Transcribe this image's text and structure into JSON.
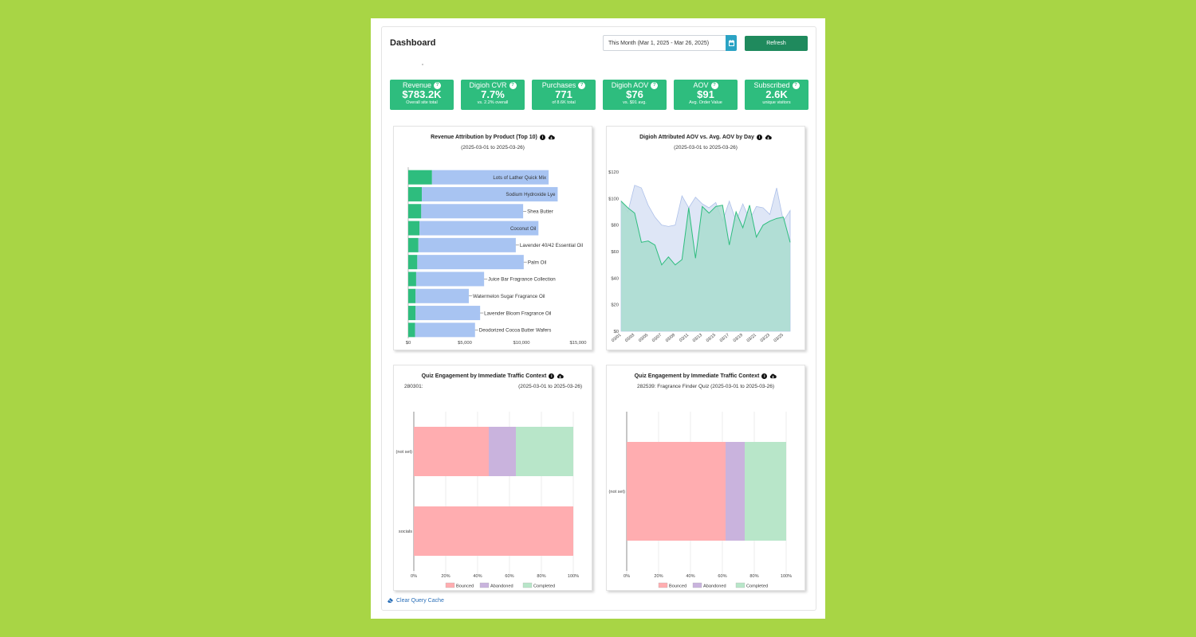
{
  "header": {
    "title": "Dashboard",
    "date_range": "This Month (Mar 1, 2025 - Mar 26, 2025)",
    "refresh_label": "Refresh"
  },
  "kpis": [
    {
      "label": "Revenue",
      "value": "$783.2K",
      "sub": "Overall site total"
    },
    {
      "label": "Digioh CVR",
      "value": "7.7%",
      "sub": "vs. 2.2% overall"
    },
    {
      "label": "Purchases",
      "value": "771",
      "sub": "of 8.6K total"
    },
    {
      "label": "Digioh AOV",
      "value": "$76",
      "sub": "vs. $91 avg."
    },
    {
      "label": "AOV",
      "value": "$91",
      "sub": "Avg. Order Value"
    },
    {
      "label": "Subscribed",
      "value": "2.6K",
      "sub": "unique visitors"
    }
  ],
  "charts": {
    "revenue": {
      "title": "Revenue Attribution by Product (Top 10)",
      "subtitle": "(2025-03-01 to 2025-03-26)"
    },
    "aov": {
      "title": "Digioh Attributed AOV vs. Avg. AOV by Day",
      "subtitle": "(2025-03-01 to 2025-03-26)"
    },
    "quiz1": {
      "title": "Quiz Engagement by Immediate Traffic Context",
      "id_label": "280301:",
      "subtitle": "(2025-03-01 to 2025-03-26)"
    },
    "quiz2": {
      "title": "Quiz Engagement by Immediate Traffic Context",
      "subtitle": "282539: Fragrance Finder Quiz (2025-03-01 to 2025-03-26)"
    }
  },
  "footer": {
    "clear_cache_label": "Clear Query Cache"
  },
  "colors": {
    "accent_green": "#2ebd7e",
    "button_green": "#1f8a5d",
    "bar_blue": "#a8c4f2",
    "bounced": "#ffadb0",
    "abandoned": "#c9b3dd",
    "completed": "#b8e6c9"
  },
  "chart_data": [
    {
      "type": "bar",
      "orientation": "horizontal",
      "stacked": true,
      "categories": [
        "Lots of Lather Quick Mix",
        "Sodium Hydroxide Lye",
        "Shea Butter",
        "Coconut Oil",
        "Lavender 40/42 Essential Oil",
        "Palm Oil",
        "Juice Bar Fragrance Collection",
        "Watermelon Sugar Fragrance Oil",
        "Lavender Bloom Fragrance Oil",
        "Deodorized Cocoa Butter Wafers"
      ],
      "series": [
        {
          "values": [
            2100,
            1200,
            1150,
            1000,
            900,
            800,
            700,
            650,
            650,
            600
          ]
        },
        {
          "values": [
            10300,
            12000,
            9000,
            10500,
            8600,
            9400,
            6000,
            4700,
            5700,
            5300
          ]
        }
      ],
      "x_ticks": [
        "$0",
        "$5,000",
        "$10,000",
        "$15,000"
      ],
      "xlim": [
        0,
        15000
      ]
    },
    {
      "type": "area",
      "x": [
        "03/01",
        "03/02",
        "03/03",
        "03/04",
        "03/05",
        "03/06",
        "03/07",
        "03/08",
        "03/09",
        "03/10",
        "03/11",
        "03/12",
        "03/13",
        "03/14",
        "03/15",
        "03/16",
        "03/17",
        "03/18",
        "03/19",
        "03/20",
        "03/21",
        "03/22",
        "03/23",
        "03/24",
        "03/25",
        "03/26"
      ],
      "x_ticks": [
        "03/01",
        "03/03",
        "03/05",
        "03/07",
        "03/09",
        "03/11",
        "03/13",
        "03/15",
        "03/17",
        "03/19",
        "03/21",
        "03/23",
        "03/25"
      ],
      "series": [
        {
          "values": [
            98,
            90,
            110,
            108,
            95,
            86,
            80,
            79,
            80,
            102,
            93,
            101,
            96,
            93,
            97,
            83,
            98,
            83,
            96,
            84,
            94,
            93,
            88,
            108,
            83,
            91
          ]
        },
        {
          "values": [
            98,
            93,
            89,
            67,
            68,
            65,
            50,
            56,
            50,
            54,
            93,
            55,
            94,
            89,
            94,
            95,
            65,
            90,
            78,
            95,
            71,
            80,
            83,
            85,
            86,
            67
          ]
        }
      ],
      "y_ticks": [
        "$0",
        "$20",
        "$40",
        "$60",
        "$80",
        "$100",
        "$120"
      ],
      "ylim": [
        0,
        120
      ]
    },
    {
      "type": "bar",
      "orientation": "horizontal",
      "stacked": true,
      "categories": [
        "(not set)",
        "socials"
      ],
      "series": [
        {
          "name": "Bounced",
          "values": [
            47,
            100
          ]
        },
        {
          "name": "Abandoned",
          "values": [
            17,
            0
          ]
        },
        {
          "name": "Completed",
          "values": [
            36,
            0
          ]
        }
      ],
      "x_ticks": [
        "0%",
        "20%",
        "40%",
        "60%",
        "80%",
        "100%"
      ],
      "xlim": [
        0,
        100
      ],
      "legend": "bottom"
    },
    {
      "type": "bar",
      "orientation": "horizontal",
      "stacked": true,
      "categories": [
        "(not set)"
      ],
      "series": [
        {
          "name": "Bounced",
          "values": [
            62
          ]
        },
        {
          "name": "Abandoned",
          "values": [
            12
          ]
        },
        {
          "name": "Completed",
          "values": [
            26
          ]
        }
      ],
      "x_ticks": [
        "0%",
        "20%",
        "40%",
        "60%",
        "80%",
        "100%"
      ],
      "xlim": [
        0,
        100
      ],
      "legend": "bottom"
    }
  ]
}
